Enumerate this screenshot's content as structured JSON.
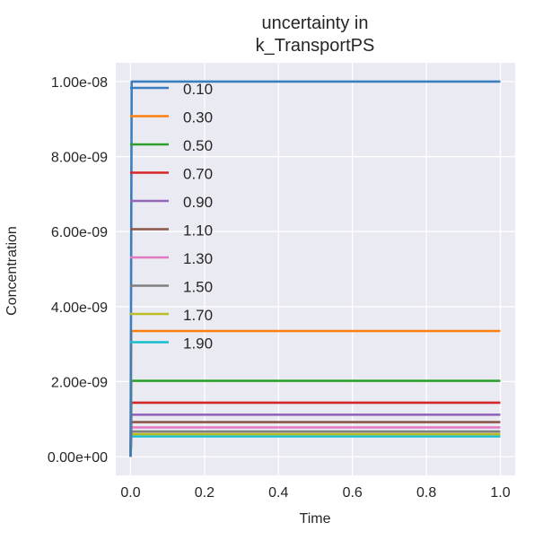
{
  "chart_data": {
    "type": "line",
    "title_line1": "uncertainty in",
    "title_line2": "k_TransportPS",
    "xlabel": "Time",
    "ylabel": "Concentration",
    "xlim": [
      -0.04,
      1.04
    ],
    "ylim": [
      -5e-10,
      1.05e-08
    ],
    "x_ticks": [
      0.0,
      0.2,
      0.4,
      0.6,
      0.8,
      1.0
    ],
    "x_tick_labels": [
      "0.0",
      "0.2",
      "0.4",
      "0.6",
      "0.8",
      "1.0"
    ],
    "y_ticks": [
      0,
      2e-09,
      4e-09,
      6e-09,
      8e-09,
      1e-08
    ],
    "y_tick_labels": [
      "0.00e+00",
      "2.00e-09",
      "4.00e-09",
      "6.00e-09",
      "8.00e-09",
      "1.00e-08"
    ],
    "grid": true,
    "legend_position": "upper-left",
    "background": "#eaeaf2",
    "series": [
      {
        "name": "0.10",
        "color": "#3a7ebf",
        "y_final": 1e-08,
        "rise_x": 0.003
      },
      {
        "name": "0.30",
        "color": "#ff7f0e",
        "y_final": 3.35e-09,
        "rise_x": 0.002
      },
      {
        "name": "0.50",
        "color": "#2ca02c",
        "y_final": 2.02e-09,
        "rise_x": 0.002
      },
      {
        "name": "0.70",
        "color": "#d62728",
        "y_final": 1.44e-09,
        "rise_x": 0.002
      },
      {
        "name": "0.90",
        "color": "#9467bd",
        "y_final": 1.12e-09,
        "rise_x": 0.002
      },
      {
        "name": "1.10",
        "color": "#8c564b",
        "y_final": 9.2e-10,
        "rise_x": 0.002
      },
      {
        "name": "1.30",
        "color": "#e377c2",
        "y_final": 7.8e-10,
        "rise_x": 0.002
      },
      {
        "name": "1.50",
        "color": "#7f7f7f",
        "y_final": 6.7e-10,
        "rise_x": 0.002
      },
      {
        "name": "1.70",
        "color": "#bcbd22",
        "y_final": 6e-10,
        "rise_x": 0.002
      },
      {
        "name": "1.90",
        "color": "#17becf",
        "y_final": 5.4e-10,
        "rise_x": 0.002
      }
    ]
  }
}
